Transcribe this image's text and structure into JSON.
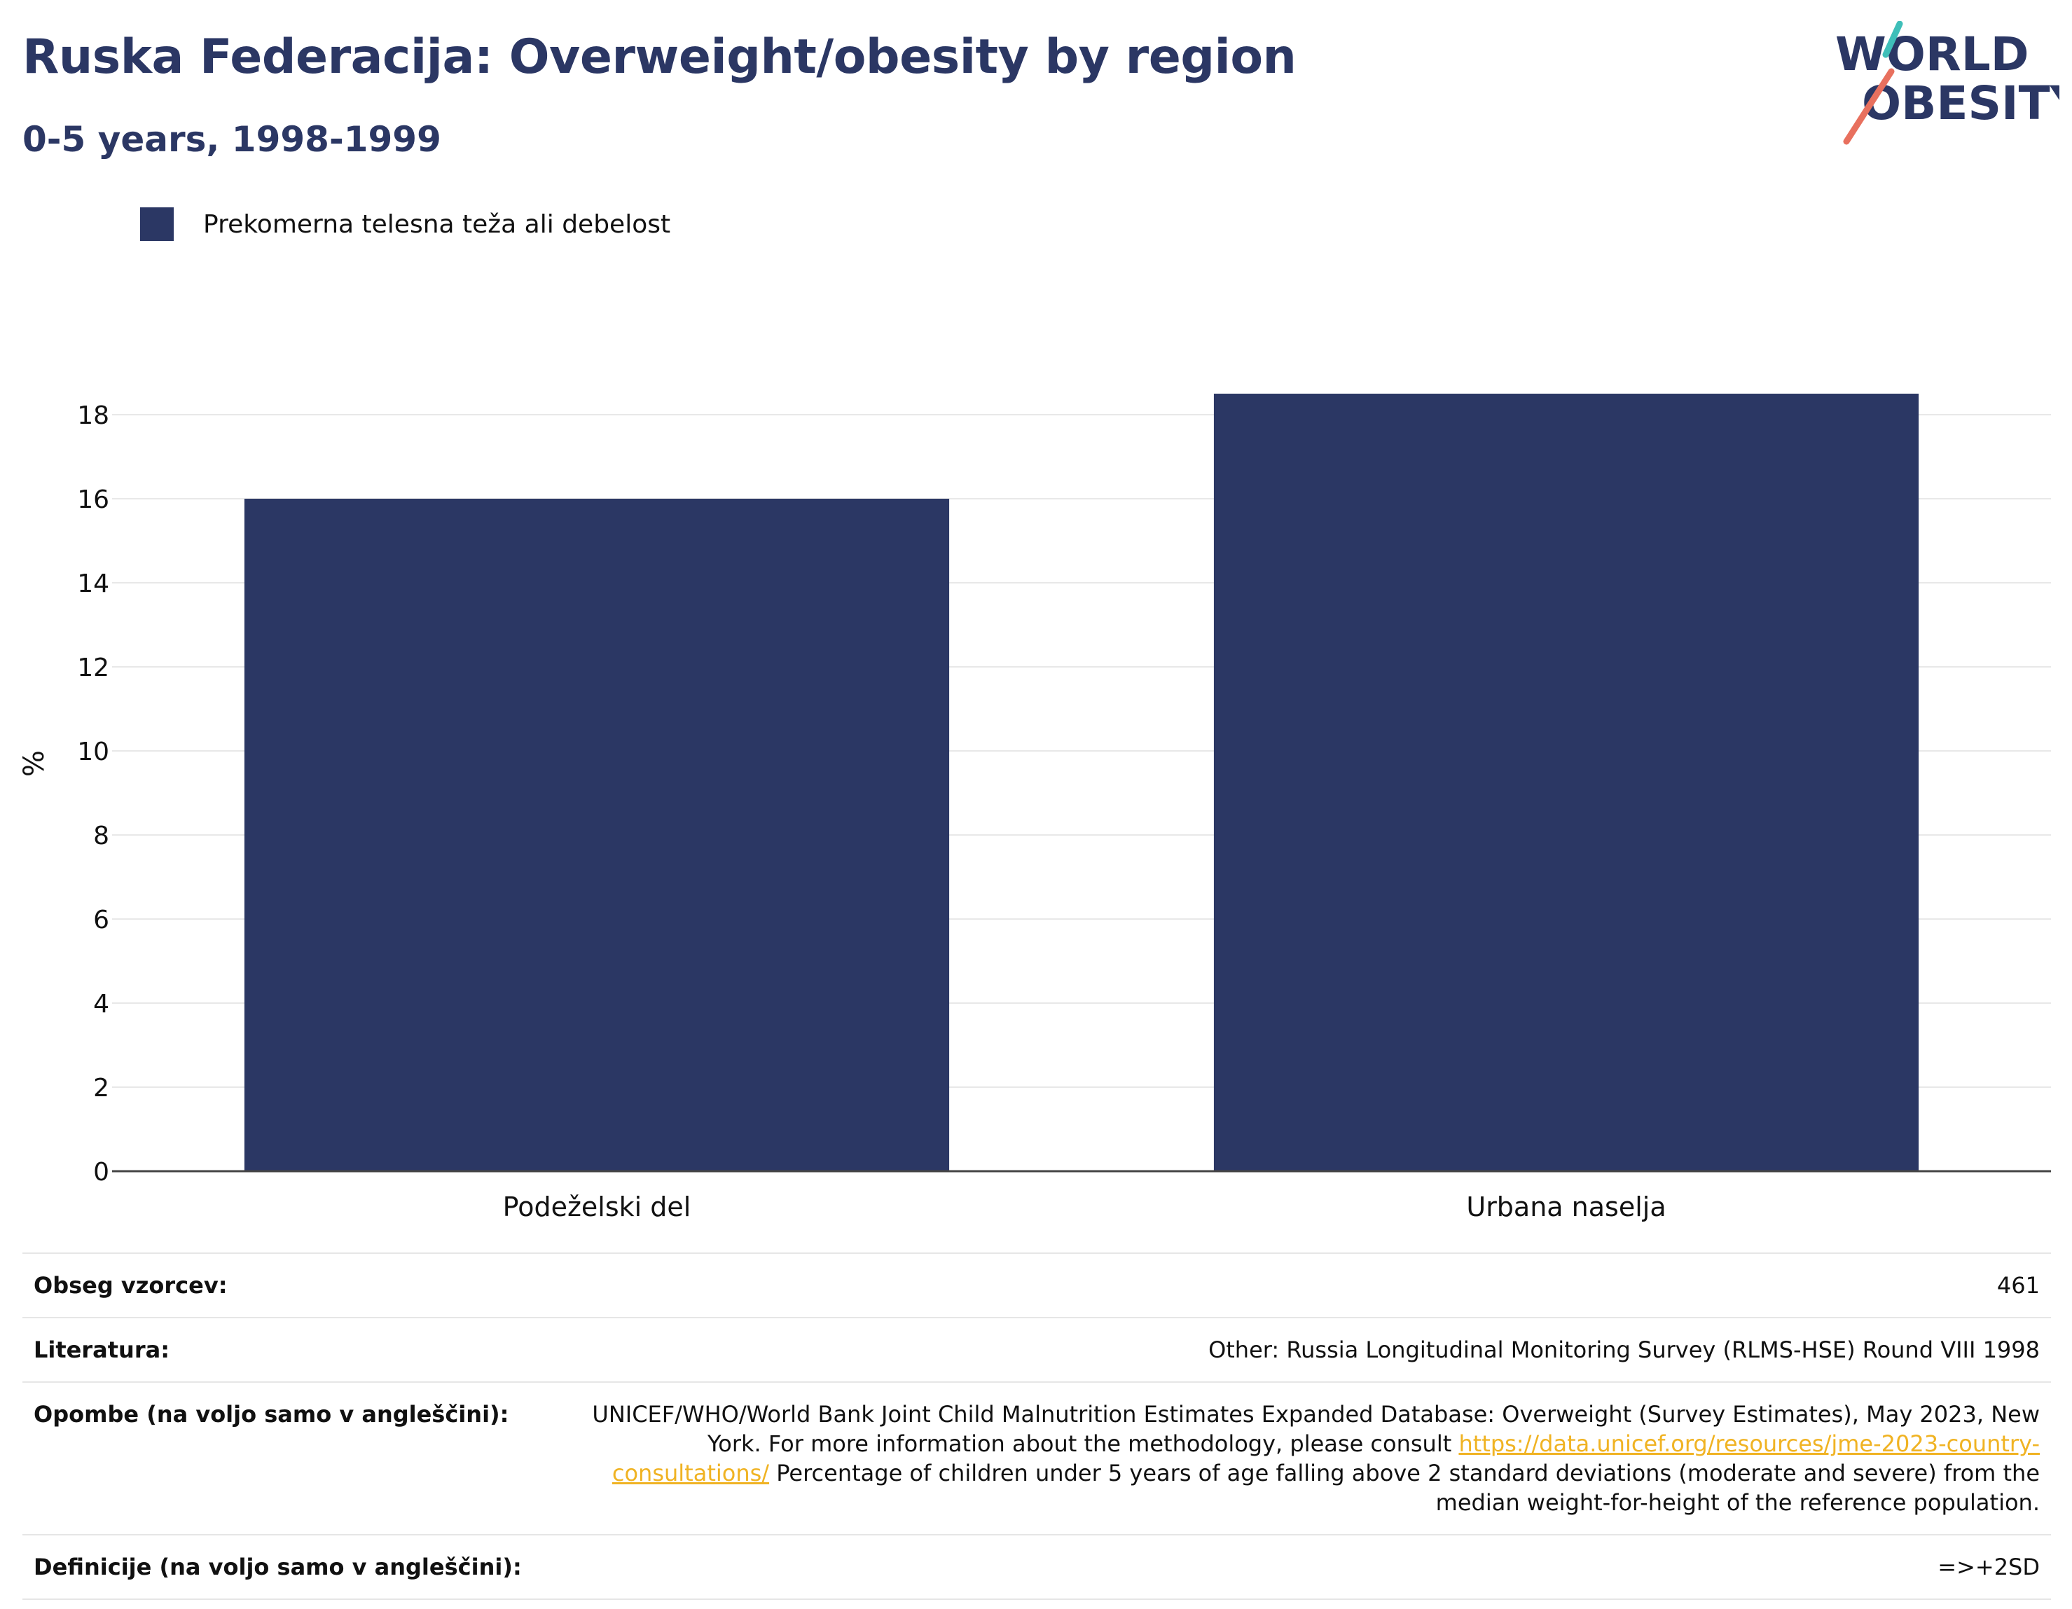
{
  "title": "Ruska Federacija: Overweight/obesity by region",
  "subtitle": "0-5 years, 1998-1999",
  "logo": {
    "line1": "WORLD",
    "line2": "OBESITY"
  },
  "legend": {
    "label": "Prekomerna telesna teža ali debelost",
    "color": "#2b3764"
  },
  "chart_data": {
    "type": "bar",
    "categories": [
      "Podeželski del",
      "Urbana naselja"
    ],
    "series": [
      {
        "name": "Prekomerna telesna teža ali debelost",
        "values": [
          16.0,
          18.5
        ]
      }
    ],
    "ylabel": "%",
    "xlabel": "",
    "ylim": [
      0,
      18.5
    ],
    "yticks": [
      "0",
      "2",
      "4",
      "6",
      "8",
      "10",
      "12",
      "14",
      "16",
      "18"
    ],
    "grid": true,
    "bar_color": "#2b3764",
    "legend_position": "top-left"
  },
  "info": {
    "sample_size_label": "Obseg vzorcev:",
    "sample_size_value": "461",
    "literature_label": "Literatura:",
    "literature_value": "Other: Russia Longitudinal Monitoring Survey (RLMS-HSE) Round VIII 1998",
    "notes_label": "Opombe (na voljo samo v angleščini):",
    "notes_text_1": "UNICEF/WHO/World Bank Joint Child Malnutrition Estimates Expanded Database: Overweight (Survey Estimates), May 2023, New York. For more information about the methodology, please consult ",
    "notes_link": "https://data.unicef.org/resources/jme-2023-country-consultations/",
    "notes_text_2": " Percentage of children under 5 years of age falling above 2 standard deviations (moderate and severe) from the median weight-for-height of the reference population.",
    "definitions_label": "Definicije (na voljo samo v angleščini):",
    "definitions_value": "=>+2SD"
  }
}
